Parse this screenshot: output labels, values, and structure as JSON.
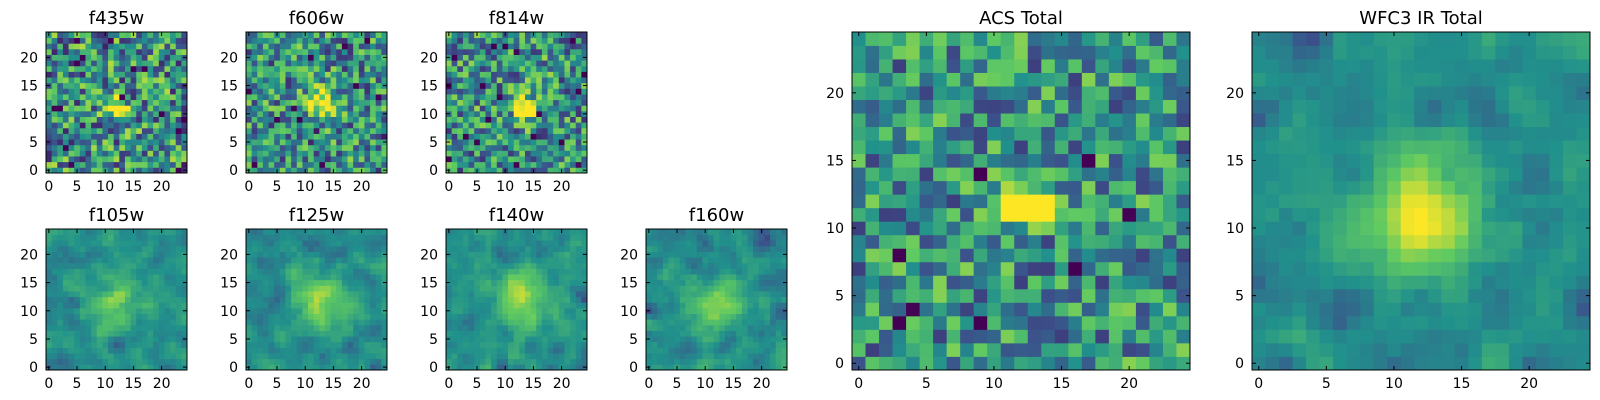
{
  "figure": {
    "colormap": "viridis",
    "colormap_stops": [
      "#440154",
      "#3b528b",
      "#21918c",
      "#5ec962",
      "#fde725"
    ],
    "frame_color": "#000000"
  },
  "chart_data": [
    {
      "type": "heatmap",
      "title": "f435w",
      "grid_size": 25,
      "xlim": [
        0,
        24
      ],
      "ylim": [
        0,
        24
      ],
      "xticks": [
        0,
        5,
        10,
        15,
        20
      ],
      "yticks": [
        0,
        5,
        10,
        15,
        20
      ],
      "peak": {
        "x": 12,
        "y": 11
      },
      "description": "noisy, compact bright core"
    },
    {
      "type": "heatmap",
      "title": "f606w",
      "grid_size": 25,
      "xlim": [
        0,
        24
      ],
      "ylim": [
        0,
        24
      ],
      "xticks": [
        0,
        5,
        10,
        15,
        20
      ],
      "yticks": [
        0,
        5,
        10,
        15,
        20
      ],
      "peak": {
        "x": 13,
        "y": 12
      }
    },
    {
      "type": "heatmap",
      "title": "f814w",
      "grid_size": 25,
      "xlim": [
        0,
        24
      ],
      "ylim": [
        0,
        24
      ],
      "xticks": [
        0,
        5,
        10,
        15,
        20
      ],
      "yticks": [
        0,
        5,
        10,
        15,
        20
      ],
      "peak": {
        "x": 13,
        "y": 11
      }
    },
    {
      "type": "heatmap",
      "title": "f105w",
      "grid_size": 25,
      "xlim": [
        0,
        24
      ],
      "ylim": [
        0,
        24
      ],
      "xticks": [
        0,
        5,
        10,
        15,
        20
      ],
      "yticks": [
        0,
        5,
        10,
        15,
        20
      ],
      "peak": {
        "x": 12,
        "y": 12
      }
    },
    {
      "type": "heatmap",
      "title": "f125w",
      "grid_size": 25,
      "xlim": [
        0,
        24
      ],
      "ylim": [
        0,
        24
      ],
      "xticks": [
        0,
        5,
        10,
        15,
        20
      ],
      "yticks": [
        0,
        5,
        10,
        15,
        20
      ],
      "peak": {
        "x": 13,
        "y": 12
      }
    },
    {
      "type": "heatmap",
      "title": "f140w",
      "grid_size": 25,
      "xlim": [
        0,
        24
      ],
      "ylim": [
        0,
        24
      ],
      "xticks": [
        0,
        5,
        10,
        15,
        20
      ],
      "yticks": [
        0,
        5,
        10,
        15,
        20
      ],
      "peak": {
        "x": 13,
        "y": 12
      }
    },
    {
      "type": "heatmap",
      "title": "f160w",
      "grid_size": 25,
      "xlim": [
        0,
        24
      ],
      "ylim": [
        0,
        24
      ],
      "xticks": [
        0,
        5,
        10,
        15,
        20
      ],
      "yticks": [
        0,
        5,
        10,
        15,
        20
      ],
      "peak": {
        "x": 12,
        "y": 11
      }
    },
    {
      "type": "heatmap",
      "title": "ACS Total",
      "grid_size": 25,
      "xlim": [
        0,
        24
      ],
      "ylim": [
        0,
        24
      ],
      "xticks": [
        0,
        5,
        10,
        15,
        20
      ],
      "yticks": [
        0,
        5,
        10,
        15,
        20
      ],
      "peak": {
        "x": 12.5,
        "y": 11.5
      },
      "description": "bright 4x2 block around x=11-14, y=11-12"
    },
    {
      "type": "heatmap",
      "title": "WFC3 IR Total",
      "grid_size": 25,
      "xlim": [
        0,
        24
      ],
      "ylim": [
        0,
        24
      ],
      "xticks": [
        0,
        5,
        10,
        15,
        20
      ],
      "yticks": [
        0,
        5,
        10,
        15,
        20
      ],
      "peak": {
        "x": 12,
        "y": 11
      },
      "description": "smooth extended bright source"
    }
  ]
}
